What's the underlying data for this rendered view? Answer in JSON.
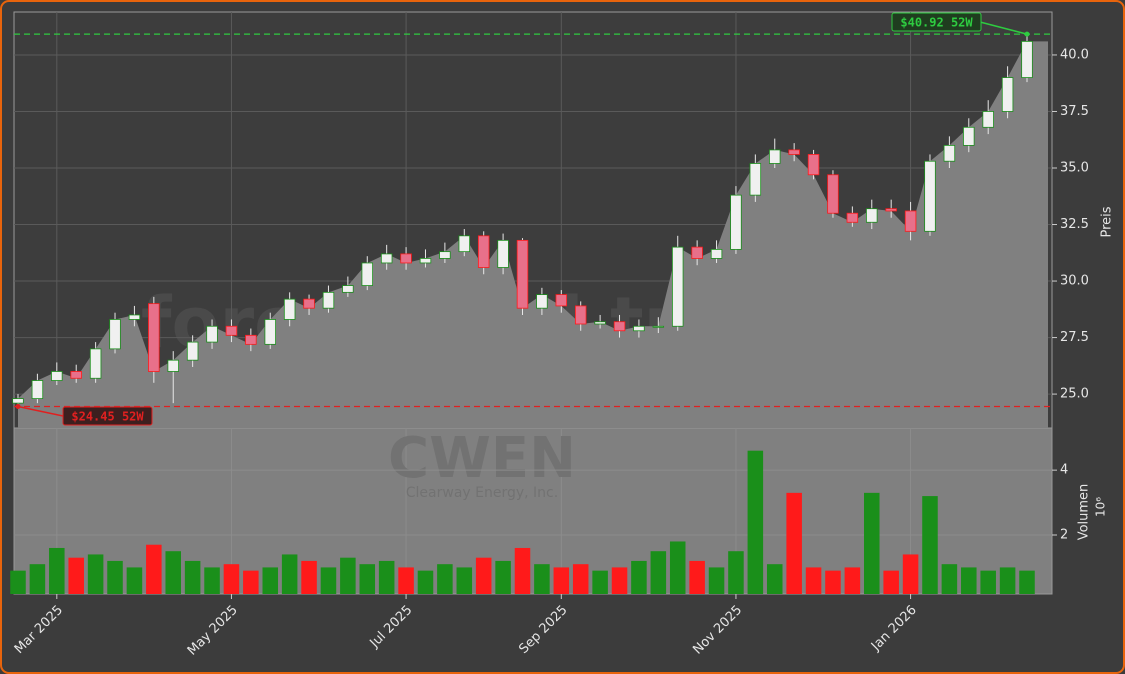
{
  "chart_data": {
    "type": "candlestick",
    "ylabel": "Preis",
    "volume_label": "Volumen",
    "volume_exponent": "10⁶",
    "watermark": "forexsignal.trade",
    "ticker": "CWEN",
    "company": "Clearway Energy, Inc.",
    "categories": [
      null,
      null,
      "Mar 2025",
      null,
      null,
      null,
      null,
      null,
      null,
      null,
      null,
      "May 2025",
      null,
      null,
      null,
      null,
      null,
      null,
      null,
      null,
      "Jul 2025",
      null,
      null,
      null,
      null,
      null,
      null,
      null,
      "Sep 2025",
      null,
      null,
      null,
      null,
      null,
      null,
      null,
      null,
      "Nov 2025",
      null,
      null,
      null,
      null,
      null,
      null,
      null,
      null,
      "Jan 2026",
      null,
      null,
      null,
      null,
      null,
      null
    ],
    "open": [
      24.6,
      24.8,
      25.6,
      26.0,
      25.7,
      27.0,
      28.3,
      29.0,
      26.0,
      26.5,
      27.3,
      28.0,
      27.6,
      27.2,
      28.3,
      29.2,
      28.8,
      29.5,
      29.8,
      30.8,
      31.2,
      30.8,
      31.0,
      31.3,
      32.0,
      30.6,
      31.8,
      28.8,
      29.4,
      28.9,
      28.1,
      28.2,
      27.8,
      28.0,
      28.0,
      31.5,
      31.0,
      31.4,
      33.8,
      35.2,
      35.8,
      35.6,
      34.7,
      33.0,
      32.6,
      33.2,
      33.1,
      32.2,
      35.3,
      36.0,
      36.8,
      37.5,
      39.0
    ],
    "high": [
      25.0,
      25.9,
      26.4,
      26.3,
      27.3,
      28.6,
      28.9,
      29.3,
      26.9,
      27.6,
      28.3,
      28.3,
      27.9,
      28.6,
      29.5,
      29.4,
      29.8,
      30.2,
      31.1,
      31.6,
      31.5,
      31.4,
      31.7,
      32.3,
      32.2,
      32.1,
      31.9,
      29.7,
      29.6,
      29.1,
      28.5,
      28.5,
      28.3,
      28.4,
      32.0,
      31.8,
      31.8,
      34.2,
      35.6,
      36.3,
      36.1,
      35.8,
      34.9,
      33.3,
      33.6,
      33.6,
      33.5,
      35.6,
      36.4,
      37.2,
      38.0,
      39.5,
      40.92
    ],
    "low": [
      24.45,
      24.6,
      25.4,
      25.5,
      25.5,
      26.8,
      28.0,
      25.5,
      24.6,
      26.2,
      27.0,
      27.3,
      26.9,
      27.0,
      28.0,
      28.5,
      28.6,
      29.3,
      29.6,
      30.5,
      30.5,
      30.6,
      30.8,
      31.1,
      30.3,
      30.3,
      28.5,
      28.5,
      28.6,
      27.8,
      27.9,
      27.5,
      27.5,
      27.7,
      27.8,
      30.7,
      30.8,
      31.2,
      33.5,
      35.0,
      35.3,
      34.5,
      32.8,
      32.4,
      32.3,
      32.8,
      31.8,
      32.0,
      35.0,
      35.7,
      36.5,
      37.2,
      38.8
    ],
    "close": [
      24.8,
      25.6,
      26.0,
      25.7,
      27.0,
      28.3,
      28.5,
      26.0,
      26.5,
      27.3,
      28.0,
      27.6,
      27.2,
      28.3,
      29.2,
      28.8,
      29.5,
      29.8,
      30.8,
      31.2,
      30.8,
      31.0,
      31.3,
      32.0,
      30.6,
      31.8,
      28.8,
      29.4,
      28.9,
      28.1,
      28.2,
      27.8,
      28.0,
      28.0,
      31.5,
      31.0,
      31.4,
      33.8,
      35.2,
      35.8,
      35.6,
      34.7,
      33.0,
      32.6,
      33.2,
      33.1,
      32.2,
      35.3,
      36.0,
      36.8,
      37.5,
      39.0,
      40.6
    ],
    "volume": [
      0.9,
      1.1,
      1.6,
      1.3,
      1.4,
      1.2,
      1.0,
      1.7,
      1.5,
      1.2,
      1.0,
      1.1,
      0.9,
      1.0,
      1.4,
      1.2,
      1.0,
      1.3,
      1.1,
      1.2,
      1.0,
      0.9,
      1.1,
      1.0,
      1.3,
      1.2,
      1.6,
      1.1,
      1.0,
      1.1,
      0.9,
      1.0,
      1.2,
      1.5,
      1.8,
      1.2,
      1.0,
      1.5,
      4.6,
      1.1,
      3.3,
      1.0,
      0.9,
      1.0,
      3.3,
      0.9,
      1.4,
      3.2,
      1.1,
      1.0,
      0.9,
      1.0,
      0.9
    ],
    "up_color": "#1a8f1a",
    "down_color": "#ff1a1a",
    "ylim": [
      23.5,
      41.9
    ],
    "yticks": [
      {
        "value": 25,
        "label": "25.0"
      },
      {
        "value": 27.5,
        "label": "27.5"
      },
      {
        "value": 30,
        "label": "30.0"
      },
      {
        "value": 32.5,
        "label": "32.5"
      },
      {
        "value": 35,
        "label": "35.0"
      },
      {
        "value": 37.5,
        "label": "37.5"
      },
      {
        "value": 40,
        "label": "40.0"
      }
    ],
    "volume_ylim": [
      0.18,
      5.3
    ],
    "volume_yticks": [
      2,
      4
    ],
    "grid": true,
    "annotations": [
      {
        "value": 40.92,
        "label": "$40.92 52W",
        "color": "#2ecc40"
      },
      {
        "value": 24.45,
        "label": "$24.45 52W",
        "color": "#e02020"
      }
    ]
  }
}
